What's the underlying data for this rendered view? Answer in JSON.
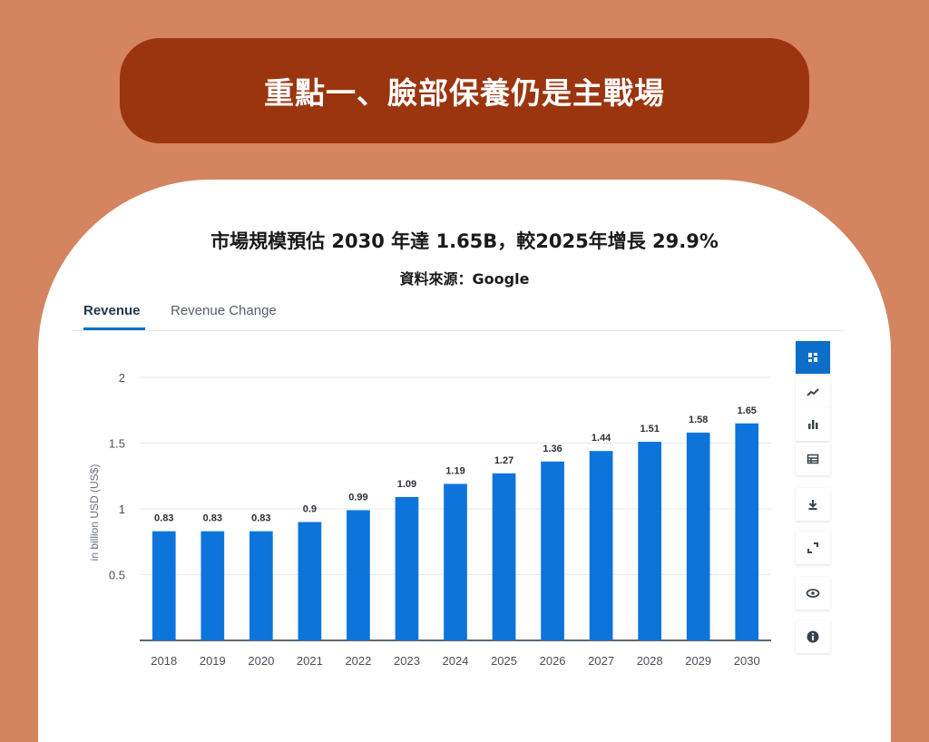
{
  "header": {
    "title": "重點一、臉部保養仍是主戰場"
  },
  "card": {
    "title": "市場規模預估 2030 年達 1.65B，較2025年增長 29.9%",
    "source": "資料來源：Google"
  },
  "tabs": [
    {
      "label": "Revenue",
      "active": true
    },
    {
      "label": "Revenue Change",
      "active": false
    }
  ],
  "toolbar": {
    "icons": [
      "dashboard-icon",
      "line-chart-icon",
      "bar-chart-icon",
      "table-icon",
      "download-icon",
      "expand-icon",
      "eye-icon",
      "info-icon"
    ]
  },
  "colors": {
    "background": "#d4845f",
    "header_pill": "#9b3510",
    "bar": "#0d74dc",
    "accent": "#0d6ec9"
  },
  "chart_data": {
    "type": "bar",
    "categories": [
      "2018",
      "2019",
      "2020",
      "2021",
      "2022",
      "2023",
      "2024",
      "2025",
      "2026",
      "2027",
      "2028",
      "2029",
      "2030"
    ],
    "values": [
      0.83,
      0.83,
      0.83,
      0.9,
      0.99,
      1.09,
      1.19,
      1.27,
      1.36,
      1.44,
      1.51,
      1.58,
      1.65
    ],
    "value_labels": [
      "0.83",
      "0.83",
      "0.83",
      "0.9",
      "0.99",
      "1.09",
      "1.19",
      "1.27",
      "1.36",
      "1.44",
      "1.51",
      "1.58",
      "1.65"
    ],
    "ylabel": "in billion USD (US$)",
    "xlabel": "",
    "ylim": [
      0,
      2
    ],
    "yticks": [
      0.5,
      1,
      1.5,
      2
    ],
    "ytick_labels": [
      "0.5",
      "1",
      "1.5",
      "2"
    ],
    "grid": true
  }
}
